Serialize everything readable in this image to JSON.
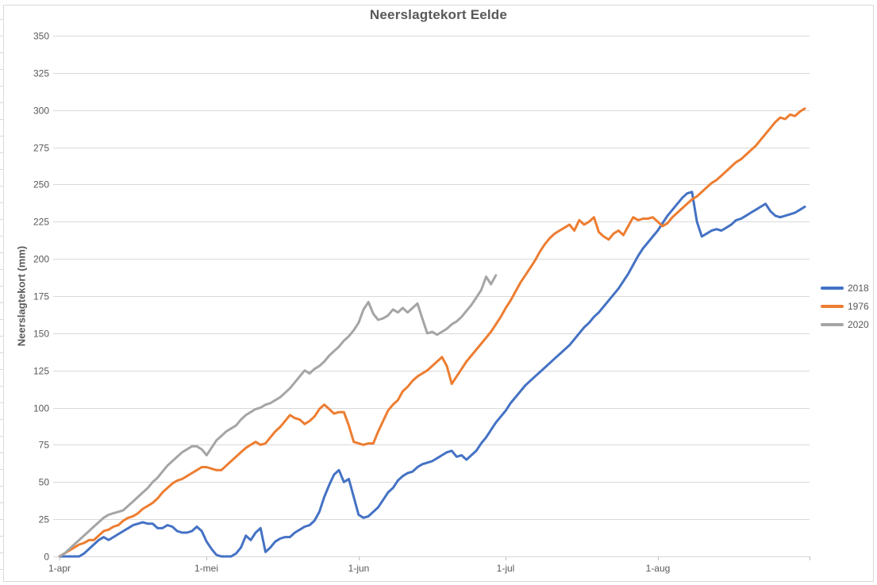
{
  "title": "Neerslagtekort Eelde",
  "colors": {
    "series_2018": "#4472C4",
    "series_1976": "#ED7D31",
    "series_2020": "#A5A5A5",
    "gridline": "#D9D9D9",
    "axis": "#BFBFBF",
    "text": "#595959",
    "background": "#FFFFFF"
  },
  "chart_data": {
    "type": "line",
    "title": "Neerslagtekort Eelde",
    "xlabel": "",
    "ylabel": "Neerslagtekort (mm)",
    "ylim": [
      0,
      350
    ],
    "ytick_step": 25,
    "y_tick_labels": [
      "0",
      "25",
      "50",
      "75",
      "100",
      "125",
      "150",
      "175",
      "200",
      "225",
      "250",
      "275",
      "300",
      "325",
      "350"
    ],
    "x_tick_labels": [
      "1-apr",
      "1-mei",
      "1-jun",
      "1-jul",
      "1-aug"
    ],
    "x_tick_days": [
      0,
      30,
      61,
      91,
      122
    ],
    "x_total_days": 153,
    "x_unit": "day index from 1 april (daily values)",
    "grid": "horizontal only",
    "legend_position": "right",
    "series": [
      {
        "name": "2018",
        "color": "#4472C4",
        "start_day": 0,
        "values": [
          0,
          0,
          0,
          0,
          0,
          2,
          5,
          8,
          11,
          13,
          11,
          13,
          15,
          17,
          19,
          21,
          22,
          23,
          22,
          22,
          19,
          19,
          21,
          20,
          17,
          16,
          16,
          17,
          20,
          17,
          10,
          5,
          1,
          0,
          0,
          0,
          2,
          6,
          14,
          11,
          16,
          19,
          3,
          6,
          10,
          12,
          13,
          13,
          16,
          18,
          20,
          21,
          24,
          30,
          40,
          48,
          55,
          58,
          50,
          52,
          40,
          28,
          26,
          27,
          30,
          33,
          38,
          43,
          46,
          51,
          54,
          56,
          57,
          60,
          62,
          63,
          64,
          66,
          68,
          70,
          71,
          67,
          68,
          65,
          68,
          71,
          76,
          80,
          85,
          90,
          94,
          98,
          103,
          107,
          111,
          115,
          118,
          121,
          124,
          127,
          130,
          133,
          136,
          139,
          142,
          146,
          150,
          154,
          157,
          161,
          164,
          168,
          172,
          176,
          180,
          185,
          190,
          196,
          202,
          207,
          211,
          215,
          219,
          224,
          229,
          233,
          237,
          241,
          244,
          245,
          225,
          215,
          217,
          219,
          220,
          219,
          221,
          223,
          226,
          227,
          229,
          231,
          233,
          235,
          237,
          232,
          229,
          228,
          229,
          230,
          231,
          233,
          235
        ]
      },
      {
        "name": "1976",
        "color": "#ED7D31",
        "start_day": 0,
        "values": [
          0,
          2,
          4,
          6,
          8,
          9,
          11,
          11,
          14,
          17,
          18,
          20,
          21,
          24,
          26,
          27,
          29,
          32,
          34,
          36,
          39,
          43,
          46,
          49,
          51,
          52,
          54,
          56,
          58,
          60,
          60,
          59,
          58,
          58,
          61,
          64,
          67,
          70,
          73,
          75,
          77,
          75,
          76,
          80,
          84,
          87,
          91,
          95,
          93,
          92,
          89,
          91,
          94,
          99,
          102,
          99,
          96,
          97,
          97,
          88,
          77,
          76,
          75,
          76,
          76,
          84,
          91,
          98,
          102,
          105,
          111,
          114,
          118,
          121,
          123,
          125,
          128,
          131,
          134,
          128,
          116,
          121,
          126,
          131,
          135,
          139,
          143,
          147,
          151,
          156,
          161,
          167,
          172,
          178,
          184,
          189,
          194,
          199,
          205,
          210,
          214,
          217,
          219,
          221,
          223,
          219,
          226,
          223,
          225,
          228,
          218,
          215,
          213,
          217,
          219,
          216,
          222,
          228,
          226,
          227,
          227,
          228,
          225,
          222,
          224,
          228,
          231,
          234,
          237,
          240,
          242,
          245,
          248,
          251,
          253,
          256,
          259,
          262,
          265,
          267,
          270,
          273,
          276,
          280,
          284,
          288,
          292,
          295,
          294,
          297,
          296,
          299,
          301
        ]
      },
      {
        "name": "2020",
        "color": "#A5A5A5",
        "start_day": 0,
        "values": [
          0,
          2,
          5,
          8,
          11,
          14,
          17,
          20,
          23,
          26,
          28,
          29,
          30,
          31,
          34,
          37,
          40,
          43,
          46,
          50,
          53,
          57,
          61,
          64,
          67,
          70,
          72,
          74,
          74,
          72,
          68,
          73,
          78,
          81,
          84,
          86,
          88,
          92,
          95,
          97,
          99,
          100,
          102,
          103,
          105,
          107,
          110,
          113,
          117,
          121,
          125,
          123,
          126,
          128,
          131,
          135,
          138,
          141,
          145,
          148,
          152,
          157,
          166,
          171,
          163,
          159,
          160,
          162,
          166,
          164,
          167,
          164,
          167,
          170,
          160,
          150,
          151,
          149,
          151,
          153,
          156,
          158,
          161,
          165,
          169,
          174,
          179,
          188,
          183,
          189
        ]
      }
    ]
  }
}
